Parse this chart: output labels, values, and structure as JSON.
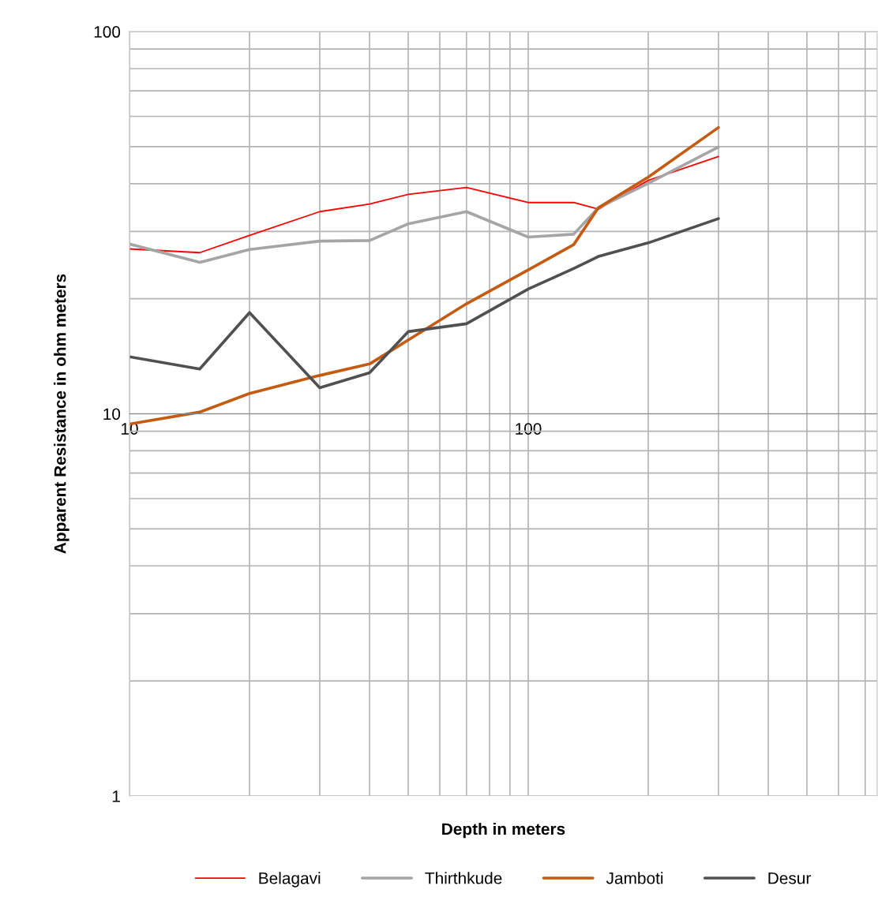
{
  "chart_data": {
    "type": "line",
    "xlabel": "Depth in meters",
    "ylabel": "Apparent Resistance in ohm meters",
    "x": [
      10,
      15,
      20,
      30,
      40,
      50,
      70,
      100,
      130,
      150,
      200,
      300
    ],
    "series": [
      {
        "name": "Belagavi",
        "color": "#ff0000",
        "values": [
          27,
          26.4,
          29.3,
          33.8,
          35.4,
          37.5,
          39.1,
          35.7,
          35.7,
          34.3,
          40.8,
          47.1
        ]
      },
      {
        "name": "Thirthkude",
        "color": "#a5a5a5",
        "values": [
          27.8,
          24.9,
          26.9,
          28.3,
          28.4,
          31.4,
          33.8,
          29.0,
          29.5,
          34.6,
          40.1,
          49.9
        ]
      },
      {
        "name": "Jamboti",
        "color": "#c55a11",
        "values": [
          9.4,
          10.1,
          11.3,
          12.6,
          13.5,
          15.6,
          19.4,
          23.8,
          27.7,
          34.6,
          41.6,
          56.1
        ]
      },
      {
        "name": "Desur",
        "color": "#505050",
        "values": [
          14.1,
          13.1,
          18.4,
          11.7,
          12.8,
          16.4,
          17.2,
          21.2,
          24.0,
          25.8,
          28.0,
          32.4
        ]
      }
    ],
    "log": "xy",
    "xlim": [
      10,
      750
    ],
    "ylim": [
      1,
      100
    ],
    "xticks": [
      10,
      {
        "value": 20,
        "label": null
      },
      {
        "value": 30,
        "label": null
      },
      {
        "value": 40,
        "label": null
      },
      {
        "value": 50,
        "label": null
      },
      {
        "value": 60,
        "label": null
      },
      {
        "value": 70,
        "label": null
      },
      {
        "value": 80,
        "label": null
      },
      {
        "value": 90,
        "label": null
      },
      100,
      {
        "value": 200,
        "label": null
      },
      {
        "value": 300,
        "label": null
      },
      {
        "value": 400,
        "label": null
      },
      {
        "value": 500,
        "label": null
      },
      {
        "value": 600,
        "label": null
      },
      {
        "value": 700,
        "label": null
      }
    ],
    "yticks": [
      1,
      {
        "value": 2,
        "label": null
      },
      {
        "value": 3,
        "label": null
      },
      {
        "value": 4,
        "label": null
      },
      {
        "value": 5,
        "label": null
      },
      {
        "value": 6,
        "label": null
      },
      {
        "value": 7,
        "label": null
      },
      {
        "value": 8,
        "label": null
      },
      {
        "value": 9,
        "label": null
      },
      10,
      {
        "value": 20,
        "label": null
      },
      {
        "value": 30,
        "label": null
      },
      {
        "value": 40,
        "label": null
      },
      {
        "value": 50,
        "label": null
      },
      {
        "value": 60,
        "label": null
      },
      {
        "value": 70,
        "label": null
      },
      {
        "value": 80,
        "label": null
      },
      {
        "value": 90,
        "label": null
      },
      100
    ],
    "grid": true,
    "legend": "bottom",
    "marker": "none",
    "line_style": "solid"
  }
}
